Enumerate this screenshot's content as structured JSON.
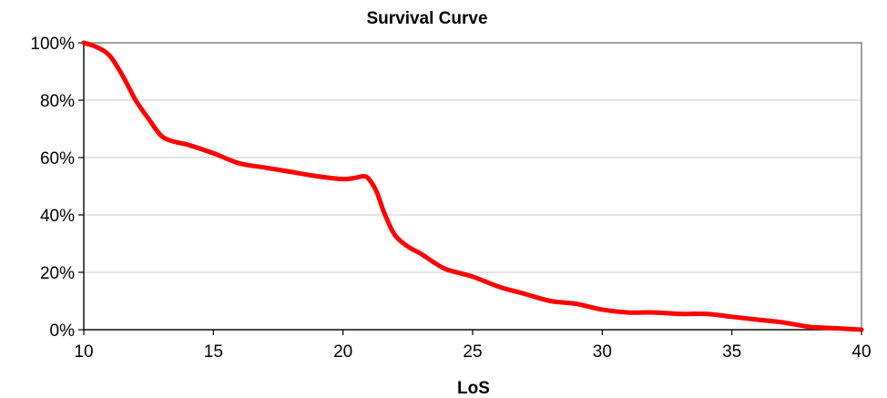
{
  "chart_data": {
    "type": "line",
    "title": "Survival Curve",
    "xlabel": "LoS",
    "ylabel": "",
    "xlim": [
      10,
      40
    ],
    "ylim": [
      0,
      1
    ],
    "x_ticks": [
      10,
      15,
      20,
      25,
      30,
      35,
      40
    ],
    "y_ticks": [
      0,
      0.2,
      0.4,
      0.6,
      0.8,
      1.0
    ],
    "y_tick_labels": [
      "0%",
      "20%",
      "40%",
      "60%",
      "80%",
      "100%"
    ],
    "grid": true,
    "legend": "none",
    "series": [
      {
        "color": "#ff0000",
        "x": [
          10,
          10.5,
          11,
          11.5,
          12,
          12.5,
          13,
          13.5,
          14,
          15,
          16,
          17,
          18,
          19,
          20,
          20.5,
          20.8,
          21,
          21.3,
          21.6,
          22,
          22.5,
          23,
          23.5,
          24,
          25,
          26,
          27,
          28,
          29,
          30,
          31,
          32,
          33,
          34,
          35,
          36,
          37,
          38,
          39,
          40
        ],
        "y": [
          1.0,
          0.985,
          0.955,
          0.885,
          0.8,
          0.735,
          0.675,
          0.655,
          0.645,
          0.615,
          0.58,
          0.565,
          0.55,
          0.535,
          0.525,
          0.53,
          0.535,
          0.525,
          0.48,
          0.405,
          0.33,
          0.29,
          0.265,
          0.235,
          0.21,
          0.185,
          0.15,
          0.125,
          0.1,
          0.09,
          0.07,
          0.06,
          0.06,
          0.055,
          0.055,
          0.045,
          0.035,
          0.025,
          0.01,
          0.005,
          0.0
        ]
      }
    ]
  }
}
